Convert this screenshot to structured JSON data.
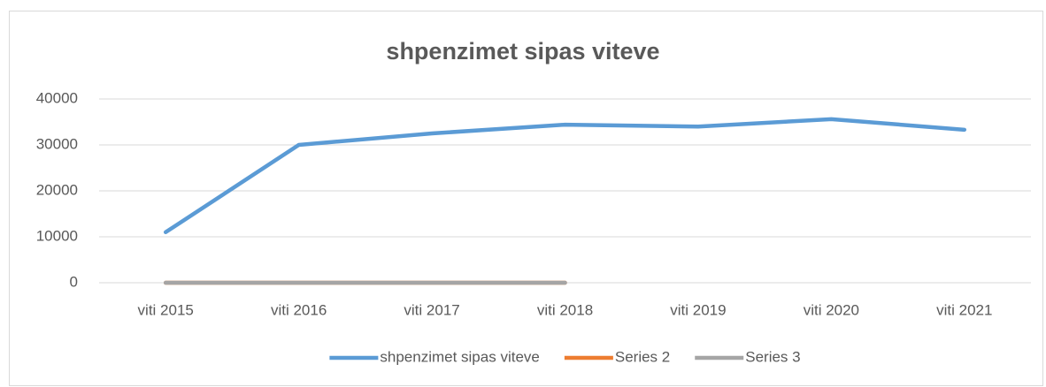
{
  "chart_data": {
    "type": "line",
    "title": "shpenzimet sipas viteve",
    "categories": [
      "viti 2015",
      "viti 2016",
      "viti 2017",
      "viti 2018",
      "viti 2019",
      "viti 2020",
      "viti 2021"
    ],
    "series": [
      {
        "name": "shpenzimet sipas viteve",
        "color": "#5b9bd5",
        "values": [
          11000,
          30000,
          32500,
          34400,
          34000,
          35600,
          33300
        ]
      },
      {
        "name": "Series 2",
        "color": "#ed7d31",
        "values": [
          0,
          0,
          0,
          0,
          null,
          null,
          null
        ]
      },
      {
        "name": "Series 3",
        "color": "#a5a5a5",
        "values": [
          0,
          0,
          0,
          0,
          null,
          null,
          null
        ]
      }
    ],
    "ylim": [
      0,
      40000
    ],
    "yticks": [
      0,
      10000,
      20000,
      30000,
      40000
    ],
    "grid": true,
    "legend": "bottom"
  }
}
